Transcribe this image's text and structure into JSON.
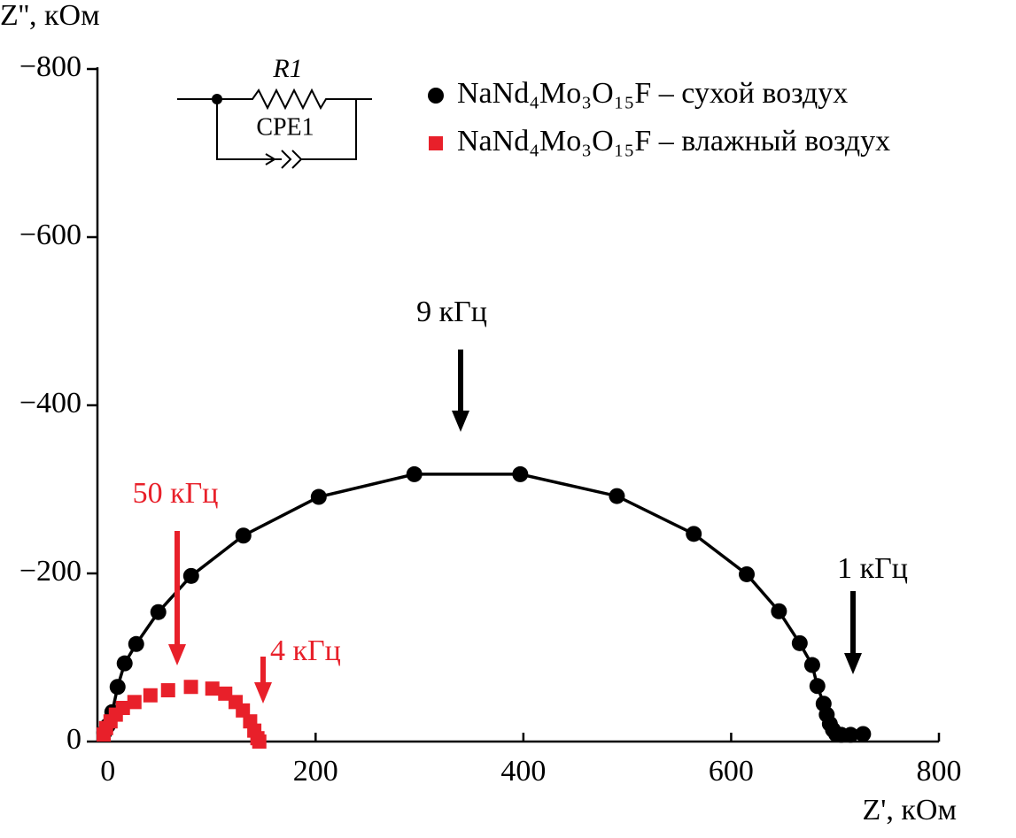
{
  "chart_data": {
    "type": "scatter",
    "x_label": "Z', кОм",
    "y_label": "Z'', кОм",
    "xlim": [
      -10,
      800
    ],
    "ylim": [
      0,
      -800
    ],
    "xticks": [
      0,
      200,
      400,
      600,
      800
    ],
    "yticks": [
      {
        "value": -800,
        "label": "−800"
      },
      {
        "value": -600,
        "label": "−600"
      },
      {
        "value": -400,
        "label": "−400"
      },
      {
        "value": -200,
        "label": "−200"
      },
      0
    ],
    "legend": "top-right",
    "series": [
      {
        "name": "NaNd₄Mo₃O₁₅F – сухой воздух",
        "color": "#000000",
        "marker": "circle",
        "line": true,
        "x": [
          -3.4,
          0,
          4.3,
          9.4,
          16.2,
          27.3,
          48.6,
          80.2,
          130.5,
          203,
          295,
          397,
          490,
          564,
          615,
          646,
          666,
          678,
          683,
          689,
          692,
          695,
          698,
          701,
          706,
          715,
          727
        ],
        "values": [
          -10.5,
          -19,
          -35,
          -65,
          -93,
          -116,
          -154,
          -197,
          -245,
          -291,
          -318,
          -318,
          -292,
          -247,
          -199,
          -155,
          -117,
          -91,
          -66,
          -45,
          -32,
          -21,
          -14,
          -9,
          -8,
          -8,
          -9
        ]
      },
      {
        "name": "NaNd₄Mo₃O₁₅F – влажный воздух",
        "color": "#e8202a",
        "marker": "square",
        "line": false,
        "x": [
          -4,
          -1.7,
          2.6,
          7.7,
          14.5,
          25.6,
          41,
          58,
          80,
          100.6,
          113,
          123,
          130,
          137,
          141,
          144,
          145.8
        ],
        "values": [
          -8.4,
          -16,
          -24,
          -32,
          -40,
          -47,
          -55,
          -61,
          -65,
          -63,
          -57,
          -47,
          -37,
          -24,
          -13,
          -4,
          0
        ]
      }
    ],
    "annotations": [
      {
        "text": "9 кГц",
        "color": "#000000"
      },
      {
        "text": "50 кГц",
        "color": "#e8202a"
      },
      {
        "text": "4 кГц",
        "color": "#e8202a"
      },
      {
        "text": "1 кГц",
        "color": "#000000"
      }
    ],
    "circuit": {
      "resistor": "R1",
      "element": "CPE1"
    }
  }
}
